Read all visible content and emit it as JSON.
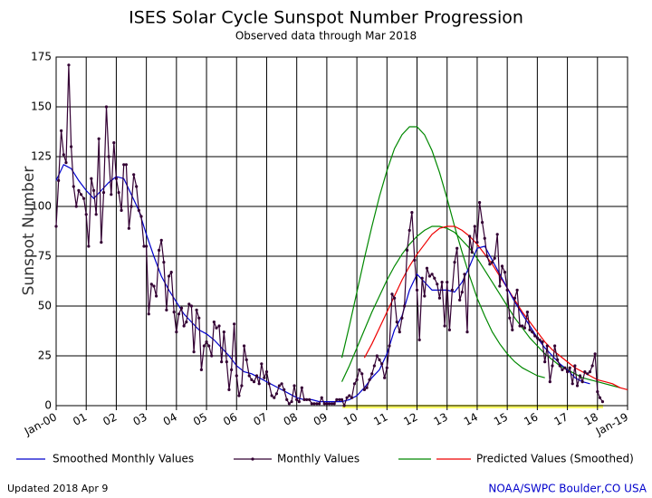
{
  "chart_data": {
    "type": "line",
    "title": "ISES Solar Cycle Sunspot Number Progression",
    "subtitle": "Observed data through Mar 2018",
    "ylabel": "Sunspot Number",
    "xlim": [
      2000,
      2019
    ],
    "ylim": [
      0,
      175
    ],
    "xticks": [
      {
        "value": 2000,
        "label": "Jan-00"
      },
      {
        "value": 2001,
        "label": "01"
      },
      {
        "value": 2002,
        "label": "02"
      },
      {
        "value": 2003,
        "label": "03"
      },
      {
        "value": 2004,
        "label": "04"
      },
      {
        "value": 2005,
        "label": "05"
      },
      {
        "value": 2006,
        "label": "06"
      },
      {
        "value": 2007,
        "label": "07"
      },
      {
        "value": 2008,
        "label": "08"
      },
      {
        "value": 2009,
        "label": "09"
      },
      {
        "value": 2010,
        "label": "10"
      },
      {
        "value": 2011,
        "label": "11"
      },
      {
        "value": 2012,
        "label": "12"
      },
      {
        "value": 2013,
        "label": "13"
      },
      {
        "value": 2014,
        "label": "14"
      },
      {
        "value": 2015,
        "label": "15"
      },
      {
        "value": 2016,
        "label": "16"
      },
      {
        "value": 2017,
        "label": "17"
      },
      {
        "value": 2018,
        "label": "18"
      },
      {
        "value": 2019,
        "label": "Jan-19"
      }
    ],
    "yticks": [
      0,
      25,
      50,
      75,
      100,
      125,
      150,
      175
    ],
    "grid": true,
    "series": [
      {
        "name": "Smoothed Monthly Values",
        "color": "#0000cc",
        "x": [
          2000,
          2000.25,
          2000.5,
          2000.75,
          2001,
          2001.25,
          2001.5,
          2001.75,
          2002,
          2002.25,
          2002.5,
          2002.75,
          2003,
          2003.25,
          2003.5,
          2003.75,
          2004,
          2004.25,
          2004.5,
          2004.75,
          2005,
          2005.25,
          2005.5,
          2005.75,
          2006,
          2006.25,
          2006.5,
          2006.75,
          2007,
          2007.25,
          2007.5,
          2007.75,
          2008,
          2008.25,
          2008.5,
          2008.75,
          2009,
          2009.25,
          2009.5,
          2009.75,
          2010,
          2010.25,
          2010.5,
          2010.75,
          2011,
          2011.25,
          2011.5,
          2011.75,
          2012,
          2012.25,
          2012.5,
          2012.75,
          2013,
          2013.25,
          2013.5,
          2013.75,
          2014,
          2014.25,
          2014.5,
          2014.75,
          2015,
          2015.25,
          2015.5,
          2015.75,
          2016,
          2016.25,
          2016.5,
          2016.75,
          2017,
          2017.25,
          2017.5,
          2017.75
        ],
        "values": [
          113,
          121,
          119,
          113,
          108,
          104,
          108,
          112,
          115,
          114,
          106,
          98,
          86,
          75,
          65,
          58,
          52,
          46,
          42,
          38,
          36,
          33,
          29,
          25,
          20,
          17,
          16,
          14,
          12,
          10,
          8,
          6,
          4,
          3,
          3,
          2,
          2,
          2,
          2,
          3,
          5,
          9,
          14,
          18,
          26,
          38,
          45,
          58,
          66,
          62,
          58,
          58,
          58,
          57,
          62,
          70,
          79,
          80,
          73,
          66,
          59,
          52,
          46,
          40,
          34,
          29,
          25,
          21,
          18,
          14,
          12,
          11
        ]
      },
      {
        "name": "Monthly Values",
        "color": "#330033",
        "markers": true,
        "x": [
          2000,
          2000.08,
          2000.17,
          2000.25,
          2000.33,
          2000.42,
          2000.5,
          2000.58,
          2000.67,
          2000.75,
          2000.83,
          2000.92,
          2001,
          2001.08,
          2001.17,
          2001.25,
          2001.33,
          2001.42,
          2001.5,
          2001.58,
          2001.67,
          2001.75,
          2001.83,
          2001.92,
          2002,
          2002.08,
          2002.17,
          2002.25,
          2002.33,
          2002.42,
          2002.5,
          2002.58,
          2002.67,
          2002.75,
          2002.83,
          2002.92,
          2003,
          2003.08,
          2003.17,
          2003.25,
          2003.33,
          2003.42,
          2003.5,
          2003.58,
          2003.67,
          2003.75,
          2003.83,
          2003.92,
          2004,
          2004.08,
          2004.17,
          2004.25,
          2004.33,
          2004.42,
          2004.5,
          2004.58,
          2004.67,
          2004.75,
          2004.83,
          2004.92,
          2005,
          2005.08,
          2005.17,
          2005.25,
          2005.33,
          2005.42,
          2005.5,
          2005.58,
          2005.67,
          2005.75,
          2005.83,
          2005.92,
          2006,
          2006.08,
          2006.17,
          2006.25,
          2006.33,
          2006.42,
          2006.5,
          2006.58,
          2006.67,
          2006.75,
          2006.83,
          2006.92,
          2007,
          2007.08,
          2007.17,
          2007.25,
          2007.33,
          2007.42,
          2007.5,
          2007.58,
          2007.67,
          2007.75,
          2007.83,
          2007.92,
          2008,
          2008.08,
          2008.17,
          2008.25,
          2008.33,
          2008.42,
          2008.5,
          2008.58,
          2008.67,
          2008.75,
          2008.83,
          2008.92,
          2009,
          2009.08,
          2009.17,
          2009.25,
          2009.33,
          2009.42,
          2009.5,
          2009.58,
          2009.67,
          2009.75,
          2009.83,
          2009.92,
          2010,
          2010.08,
          2010.17,
          2010.25,
          2010.33,
          2010.42,
          2010.5,
          2010.58,
          2010.67,
          2010.75,
          2010.83,
          2010.92,
          2011,
          2011.08,
          2011.17,
          2011.25,
          2011.33,
          2011.42,
          2011.5,
          2011.58,
          2011.67,
          2011.75,
          2011.83,
          2011.92,
          2012,
          2012.08,
          2012.17,
          2012.25,
          2012.33,
          2012.42,
          2012.5,
          2012.58,
          2012.67,
          2012.75,
          2012.83,
          2012.92,
          2013,
          2013.08,
          2013.17,
          2013.25,
          2013.33,
          2013.42,
          2013.5,
          2013.58,
          2013.67,
          2013.75,
          2013.83,
          2013.92,
          2014,
          2014.08,
          2014.17,
          2014.25,
          2014.33,
          2014.42,
          2014.5,
          2014.58,
          2014.67,
          2014.75,
          2014.83,
          2014.92,
          2015,
          2015.08,
          2015.17,
          2015.25,
          2015.33,
          2015.42,
          2015.5,
          2015.58,
          2015.67,
          2015.75,
          2015.83,
          2015.92,
          2016,
          2016.08,
          2016.17,
          2016.25,
          2016.33,
          2016.42,
          2016.5,
          2016.58,
          2016.67,
          2016.75,
          2016.83,
          2016.92,
          2017,
          2017.08,
          2017.17,
          2017.25,
          2017.33,
          2017.42,
          2017.5,
          2017.58,
          2017.67,
          2017.75,
          2017.83,
          2017.92,
          2018,
          2018.08,
          2018.17
        ],
        "values": [
          90,
          113,
          138,
          126,
          122,
          171,
          130,
          110,
          100,
          108,
          106,
          104,
          96,
          80,
          114,
          108,
          96,
          134,
          82,
          107,
          150,
          125,
          106,
          132,
          114,
          107,
          98,
          121,
          121,
          89,
          100,
          116,
          110,
          98,
          95,
          80,
          80,
          46,
          61,
          60,
          55,
          78,
          83,
          72,
          48,
          65,
          67,
          47,
          37,
          46,
          49,
          40,
          42,
          51,
          50,
          27,
          48,
          44,
          18,
          30,
          32,
          30,
          25,
          42,
          39,
          40,
          22,
          37,
          22,
          8,
          18,
          41,
          15,
          5,
          10,
          30,
          23,
          15,
          13,
          12,
          15,
          11,
          21,
          14,
          17,
          11,
          5,
          4,
          6,
          10,
          11,
          8,
          3,
          1,
          2,
          10,
          3,
          2,
          9,
          3,
          3,
          3,
          1,
          1,
          1,
          1,
          4,
          1,
          1,
          1,
          1,
          1,
          3,
          3,
          3,
          0,
          4,
          5,
          4,
          11,
          13,
          18,
          16,
          8,
          9,
          13,
          16,
          20,
          25,
          23,
          21,
          14,
          19,
          30,
          56,
          54,
          42,
          37,
          44,
          50,
          78,
          88,
          97,
          73,
          58,
          33,
          64,
          55,
          69,
          65,
          66,
          64,
          61,
          54,
          62,
          40,
          62,
          38,
          58,
          72,
          79,
          53,
          57,
          66,
          37,
          85,
          77,
          90,
          82,
          102,
          92,
          84,
          75,
          71,
          72,
          74,
          86,
          60,
          70,
          67,
          58,
          44,
          38,
          54,
          58,
          40,
          40,
          39,
          47,
          38,
          37,
          35,
          34,
          33,
          32,
          22,
          30,
          12,
          20,
          30,
          23,
          20,
          18,
          19,
          17,
          19,
          11,
          20,
          10,
          15,
          12,
          17,
          16,
          17,
          20,
          26,
          7,
          4,
          2
        ]
      },
      {
        "name": "Predicted Values (Smoothed)",
        "color": "#ee0000",
        "x": [
          2010.25,
          2010.5,
          2010.75,
          2011,
          2011.25,
          2011.5,
          2011.75,
          2012,
          2012.25,
          2012.5,
          2012.75,
          2013,
          2013.25,
          2013.5,
          2013.75,
          2014,
          2014.25,
          2014.5,
          2014.75,
          2015,
          2015.25,
          2015.5,
          2015.75,
          2016,
          2016.25,
          2016.5,
          2016.75,
          2017,
          2017.25,
          2017.5,
          2017.75,
          2018,
          2018.25,
          2018.5,
          2018.75,
          2019
        ],
        "values": [
          24,
          31,
          39,
          47,
          55,
          63,
          70,
          76,
          81,
          86,
          89,
          90,
          90,
          88,
          85,
          81,
          76,
          71,
          65,
          59,
          53,
          47,
          42,
          37,
          32,
          28,
          25,
          22,
          19,
          17,
          15,
          13,
          12,
          11,
          9,
          8
        ]
      }
    ],
    "predicted_range": [
      {
        "color": "#008800",
        "x": [
          2009.5,
          2009.75,
          2010,
          2010.25,
          2010.5,
          2010.75,
          2011,
          2011.25,
          2011.5,
          2011.75,
          2012,
          2012.25,
          2012.5,
          2012.75,
          2013,
          2013.25,
          2013.5,
          2013.75,
          2014,
          2014.25,
          2014.5,
          2014.75,
          2015,
          2015.25,
          2015.5,
          2015.75,
          2016,
          2016.25
        ],
        "values": [
          24,
          40,
          57,
          74,
          90,
          105,
          118,
          129,
          136,
          140,
          140,
          136,
          128,
          117,
          104,
          90,
          77,
          65,
          54,
          45,
          37,
          31,
          26,
          22,
          19,
          17,
          15,
          14
        ]
      },
      {
        "color": "#008800",
        "x": [
          2009.5,
          2009.75,
          2010,
          2010.25,
          2010.5,
          2010.75,
          2011,
          2011.25,
          2011.5,
          2011.75,
          2012,
          2012.25,
          2012.5,
          2012.75,
          2013,
          2013.25,
          2013.5,
          2013.75,
          2014,
          2014.25,
          2014.5,
          2014.75,
          2015,
          2015.25,
          2015.5,
          2015.75,
          2016,
          2016.25,
          2016.5,
          2016.75,
          2017,
          2017.25,
          2017.5,
          2017.75,
          2018,
          2018.25,
          2018.5,
          2018.75
        ],
        "values": [
          12,
          20,
          29,
          38,
          47,
          55,
          63,
          70,
          76,
          81,
          85,
          88,
          90,
          90,
          89,
          87,
          83,
          79,
          74,
          68,
          62,
          56,
          50,
          44,
          39,
          34,
          30,
          26,
          23,
          20,
          18,
          16,
          14,
          13,
          12,
          11,
          10,
          9
        ]
      }
    ],
    "footer": {
      "updated": "Updated 2018 Apr  9",
      "credit": "NOAA/SWPC Boulder,CO USA"
    }
  }
}
